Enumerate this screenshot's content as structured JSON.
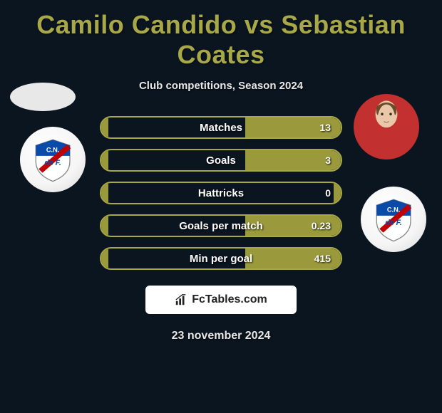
{
  "title": "Camilo Candido vs Sebastian Coates",
  "subtitle": "Club competitions, Season 2024",
  "stats": [
    {
      "label": "Matches",
      "right_value": "13",
      "left_fill_pct": 3,
      "right_fill_pct": 40
    },
    {
      "label": "Goals",
      "right_value": "3",
      "left_fill_pct": 3,
      "right_fill_pct": 40
    },
    {
      "label": "Hattricks",
      "right_value": "0",
      "left_fill_pct": 3,
      "right_fill_pct": 3
    },
    {
      "label": "Goals per match",
      "right_value": "0.23",
      "left_fill_pct": 3,
      "right_fill_pct": 40
    },
    {
      "label": "Min per goal",
      "right_value": "415",
      "left_fill_pct": 3,
      "right_fill_pct": 40
    }
  ],
  "brand": "FcTables.com",
  "date": "23 november 2024",
  "colors": {
    "bg": "#0a1520",
    "accent": "#a8a848",
    "bar_fill": "#9a9a3c",
    "text": "#ffffff"
  },
  "left": {
    "player_name": "Camilo Candido",
    "club_name": "Nacional",
    "club_color_top": "#0a4aa8",
    "club_color_bottom": "#d8d8d8",
    "club_diagonal": "#c00000"
  },
  "right": {
    "player_name": "Sebastian Coates",
    "shirt_color": "#c23030",
    "club_name": "Nacional",
    "club_color_top": "#0a4aa8",
    "club_color_bottom": "#d8d8d8",
    "club_diagonal": "#c00000"
  }
}
